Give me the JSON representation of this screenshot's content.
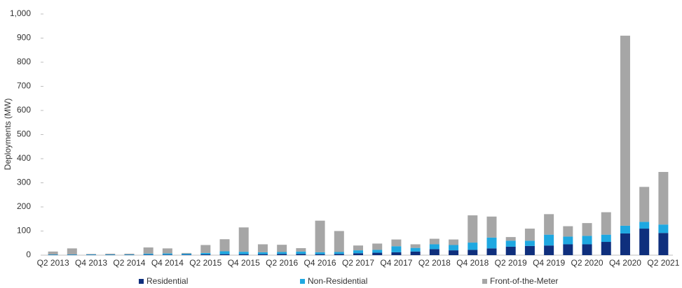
{
  "chart_data": {
    "type": "stacked-bar",
    "y_label": "Deployments (MW)",
    "categories": [
      "Q2 2013",
      null,
      "Q4 2013",
      null,
      "Q2 2014",
      null,
      "Q4 2014",
      null,
      "Q2 2015",
      null,
      "Q4 2015",
      null,
      "Q2 2016",
      null,
      "Q4 2016",
      null,
      "Q2 2017",
      null,
      "Q4 2017",
      null,
      "Q2 2018",
      null,
      "Q4 2018",
      null,
      "Q2 2019",
      null,
      "Q4 2019",
      null,
      "Q2 2020",
      null,
      "Q4 2020",
      null,
      "Q2 2021"
    ],
    "series": [
      {
        "name": "Residential",
        "color": "#0f2f7d",
        "values": [
          1,
          1,
          1,
          1,
          1,
          2,
          2,
          2,
          3,
          4,
          4,
          4,
          5,
          5,
          4,
          5,
          8,
          10,
          12,
          15,
          25,
          20,
          22,
          28,
          35,
          38,
          40,
          45,
          45,
          55,
          90,
          110,
          92
        ]
      },
      {
        "name": "Non-Residential",
        "color": "#1fa8e1",
        "values": [
          2,
          2,
          2,
          2,
          2,
          4,
          5,
          4,
          6,
          12,
          10,
          8,
          8,
          10,
          8,
          8,
          12,
          12,
          25,
          15,
          20,
          22,
          30,
          45,
          25,
          22,
          45,
          32,
          35,
          30,
          32,
          28,
          35
        ]
      },
      {
        "name": "Front-of-the-Meter",
        "color": "#a6a6a6",
        "values": [
          12,
          25,
          2,
          3,
          3,
          26,
          21,
          3,
          33,
          50,
          101,
          33,
          30,
          14,
          131,
          87,
          20,
          26,
          28,
          15,
          23,
          23,
          113,
          87,
          15,
          50,
          85,
          43,
          53,
          93,
          788,
          145,
          218
        ]
      }
    ],
    "ylim": [
      0,
      1000
    ],
    "yticks": [
      0,
      100,
      200,
      300,
      400,
      500,
      600,
      700,
      800,
      900,
      {
        "value": 1000,
        "label": "1,000"
      }
    ],
    "grid": false,
    "legend": "bottom"
  }
}
